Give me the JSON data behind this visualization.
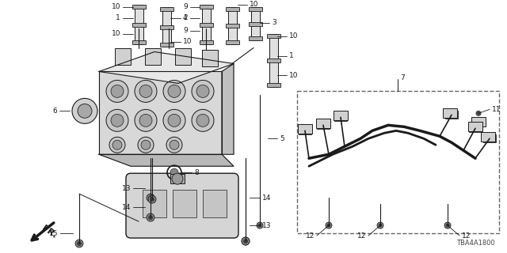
{
  "bg_color": "#ffffff",
  "line_color": "#1a1a1a",
  "part_number": "TBA4A1800",
  "fig_width": 6.4,
  "fig_height": 3.2,
  "dpi": 100,
  "label_fontsize": 6.5,
  "partnum_fontsize": 6.0
}
